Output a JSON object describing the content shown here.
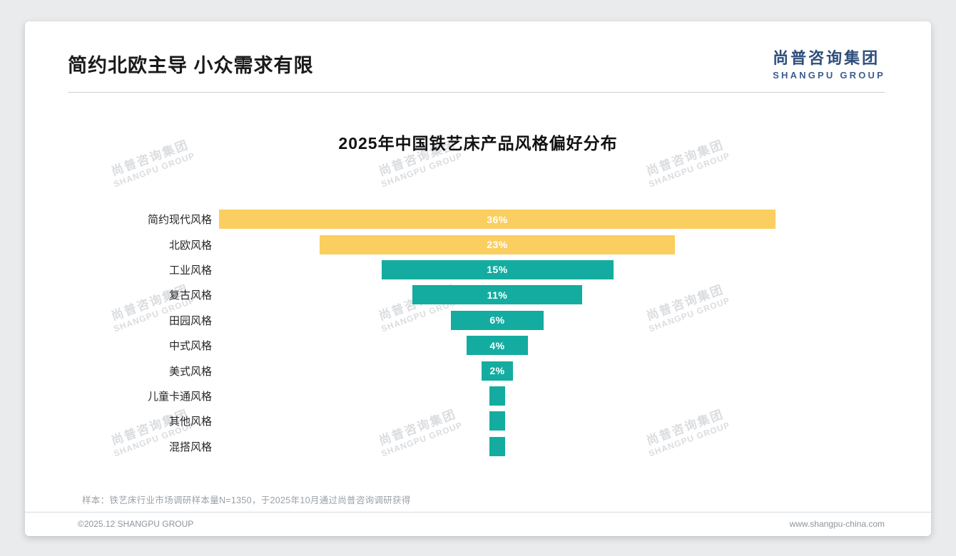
{
  "header": {
    "title": "简约北欧主导 小众需求有限",
    "logo_cn": "尚普咨询集团",
    "logo_en": "SHANGPU GROUP"
  },
  "chart_data": {
    "type": "bar",
    "variant": "horizontal-centered-funnel",
    "title": "2025年中国铁艺床产品风格偏好分布",
    "categories": [
      "简约现代风格",
      "北欧风格",
      "工业风格",
      "复古风格",
      "田园风格",
      "中式风格",
      "美式风格",
      "儿童卡通风格",
      "其他风格",
      "混搭风格"
    ],
    "values": [
      36,
      23,
      15,
      11,
      6,
      4,
      2,
      1,
      1,
      1
    ],
    "bar_labels": [
      "36%",
      "23%",
      "15%",
      "11%",
      "6%",
      "4%",
      "2%",
      "",
      "",
      ""
    ],
    "bar_colors": [
      "#FBCE60",
      "#FBCE60",
      "#14ACA0",
      "#14ACA0",
      "#14ACA0",
      "#14ACA0",
      "#14ACA0",
      "#14ACA0",
      "#14ACA0",
      "#14ACA0"
    ],
    "highlight_color": "#FBCE60",
    "base_color": "#14ACA0",
    "scale_max": 36,
    "xlim": [
      0,
      36
    ],
    "grid": false,
    "legend": false
  },
  "footer": {
    "note": "样本：铁艺床行业市场调研样本量N=1350，于2025年10月通过尚普咨询调研获得",
    "copyright": "©2025.12 SHANGPU GROUP",
    "website": "www.shangpu-china.com"
  },
  "watermark": {
    "cn": "尚普咨询集团",
    "en": "SHANGPU GROUP"
  }
}
